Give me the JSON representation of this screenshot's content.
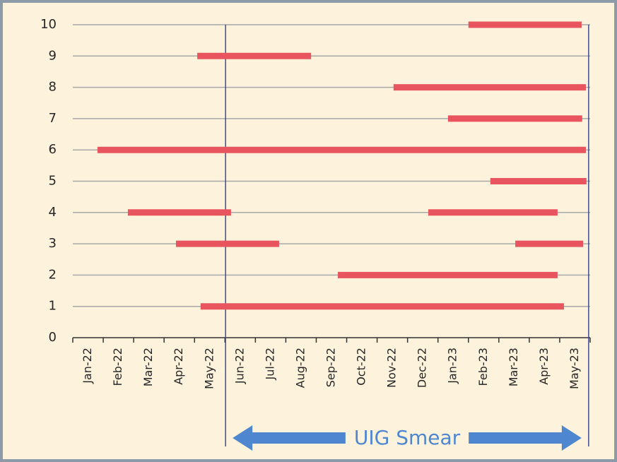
{
  "chart_data": {
    "type": "range-bar",
    "categories": [
      "Jan-22",
      "Feb-22",
      "Mar-22",
      "Apr-22",
      "May-22",
      "Jun-22",
      "Jul-22",
      "Aug-22",
      "Sep-22",
      "Oct-22",
      "Nov-22",
      "Dec-22",
      "Jan-23",
      "Feb-23",
      "Mar-23",
      "Apr-23",
      "May-23"
    ],
    "xlim": [
      0,
      17
    ],
    "ylim": [
      0,
      10
    ],
    "yticks": [
      0,
      1,
      2,
      3,
      4,
      5,
      6,
      7,
      8,
      9,
      10
    ],
    "grid": true,
    "color": "#e8555f",
    "bars": [
      {
        "y": 1,
        "start": 4.2,
        "end": 16.14
      },
      {
        "y": 2,
        "start": 8.71,
        "end": 15.93
      },
      {
        "y": 3,
        "start": 3.39,
        "end": 6.78
      },
      {
        "y": 3,
        "start": 14.54,
        "end": 16.77
      },
      {
        "y": 4,
        "start": 1.81,
        "end": 5.2
      },
      {
        "y": 4,
        "start": 11.68,
        "end": 15.93
      },
      {
        "y": 5,
        "start": 13.72,
        "end": 16.88
      },
      {
        "y": 6,
        "start": 0.81,
        "end": 16.86
      },
      {
        "y": 7,
        "start": 12.33,
        "end": 16.74
      },
      {
        "y": 8,
        "start": 10.54,
        "end": 16.86
      },
      {
        "y": 9,
        "start": 4.09,
        "end": 7.83
      },
      {
        "y": 10,
        "start": 13.0,
        "end": 16.72
      }
    ],
    "annotation": {
      "text": "UIG Smear",
      "start": 5.02,
      "end": 16.95,
      "color": "#4f86d0"
    }
  }
}
